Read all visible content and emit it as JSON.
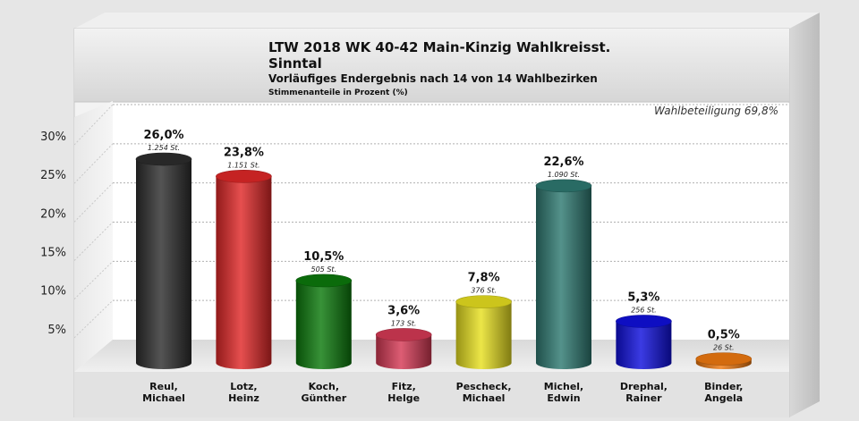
{
  "chart_data": {
    "type": "bar",
    "title": "LTW 2018 WK 40-42 Main-Kinzig Wahlkreisst.",
    "title_line2": "Sinntal",
    "subtitle": "Vorläufiges Endergebnis nach 14 von 14 Wahlbezirken",
    "ylabel": "Stimmenanteile in Prozent (%)",
    "turnout": "Wahlbeteiligung 69,8%",
    "ylim": [
      0,
      30
    ],
    "y_ticks": [
      {
        "value": 5,
        "label": "5%"
      },
      {
        "value": 10,
        "label": "10%"
      },
      {
        "value": 15,
        "label": "15%"
      },
      {
        "value": 20,
        "label": "20%"
      },
      {
        "value": 25,
        "label": "25%"
      },
      {
        "value": 30,
        "label": "30%"
      }
    ],
    "grid": true,
    "categories": [
      {
        "line1": "Reul,",
        "line2": "Michael"
      },
      {
        "line1": "Lotz,",
        "line2": "Heinz"
      },
      {
        "line1": "Koch,",
        "line2": "Günther"
      },
      {
        "line1": "Fitz,",
        "line2": "Helge"
      },
      {
        "line1": "Pescheck,",
        "line2": "Michael"
      },
      {
        "line1": "Michel,",
        "line2": "Edwin"
      },
      {
        "line1": "Drephal,",
        "line2": "Rainer"
      },
      {
        "line1": "Binder,",
        "line2": "Angela"
      }
    ],
    "values": [
      26.0,
      23.8,
      10.5,
      3.6,
      7.8,
      22.6,
      5.3,
      0.5
    ],
    "value_labels": [
      "26,0%",
      "23,8%",
      "10,5%",
      "3,6%",
      "7,8%",
      "22,6%",
      "5,3%",
      "0,5%"
    ],
    "votes_labels": [
      "1.254 St.",
      "1.151 St.",
      "505 St.",
      "173 St.",
      "376 St.",
      "1.090 St.",
      "256 St.",
      "26 St."
    ],
    "colors": [
      "#2e2e2e",
      "#e02828",
      "#0c7a0c",
      "#d63a55",
      "#e8e020",
      "#2f7a72",
      "#1010dd",
      "#f07a10"
    ]
  }
}
